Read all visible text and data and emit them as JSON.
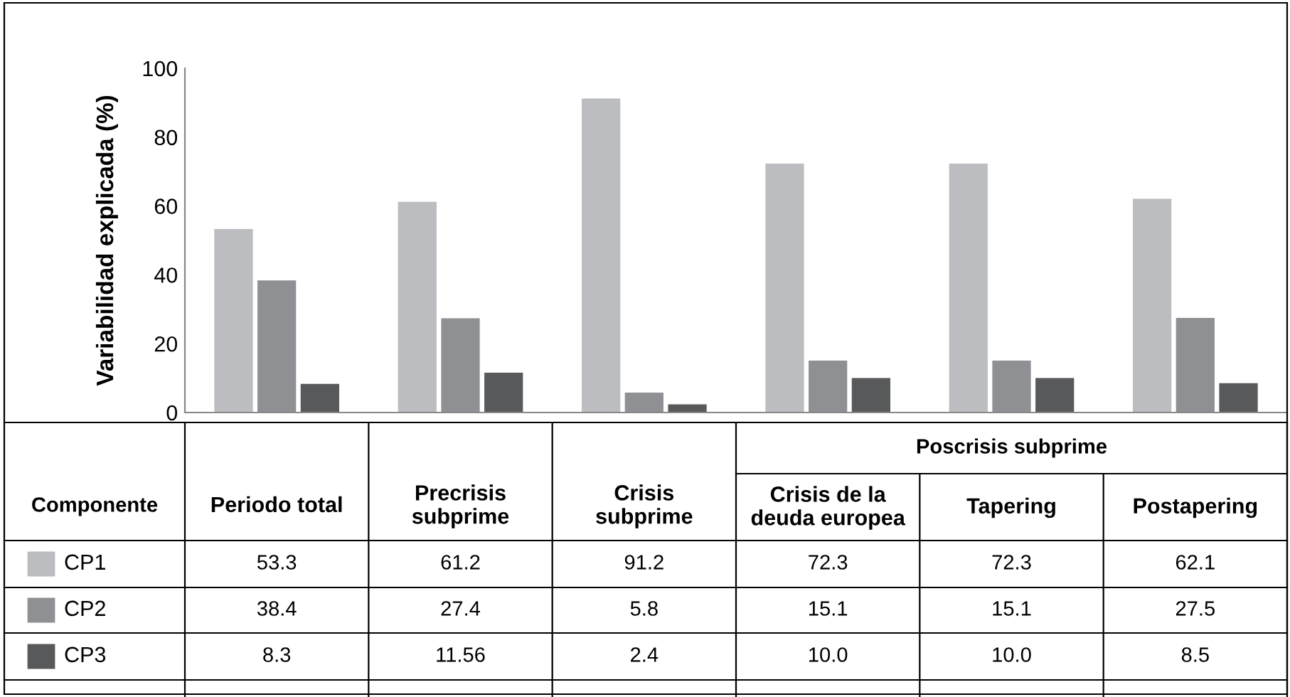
{
  "chart_data": {
    "type": "bar",
    "ylabel": "Variabilidad explicada (%)",
    "categories": [
      "Periodo total",
      "Precrisis subprime",
      "Crisis subprime",
      "Crisis de la deuda europea",
      "Tapering",
      "Postapering"
    ],
    "series": [
      {
        "name": "CP1",
        "color": "#bcbdc0",
        "values": [
          53.3,
          61.2,
          91.2,
          72.3,
          72.3,
          62.1
        ],
        "value_labels": [
          "53.3",
          "61.2",
          "91.2",
          "72.3",
          "72.3",
          "62.1"
        ]
      },
      {
        "name": "CP2",
        "color": "#8f9093",
        "values": [
          38.4,
          27.4,
          5.8,
          15.1,
          15.1,
          27.5
        ],
        "value_labels": [
          "38.4",
          "27.4",
          "5.8",
          "15.1",
          "15.1",
          "27.5"
        ]
      },
      {
        "name": "CP3",
        "color": "#58595b",
        "values": [
          8.3,
          11.56,
          2.4,
          10.0,
          10.0,
          8.5
        ],
        "value_labels": [
          "8.3",
          "11.56",
          "2.4",
          "10.0",
          "10.0",
          "8.5"
        ]
      }
    ],
    "legend": "left",
    "ylim": [
      0,
      100
    ],
    "yticks": [
      0,
      20,
      40,
      60,
      80,
      100
    ],
    "grid": false,
    "annotations": [
      "Componente",
      "Poscrisis subprime"
    ]
  }
}
